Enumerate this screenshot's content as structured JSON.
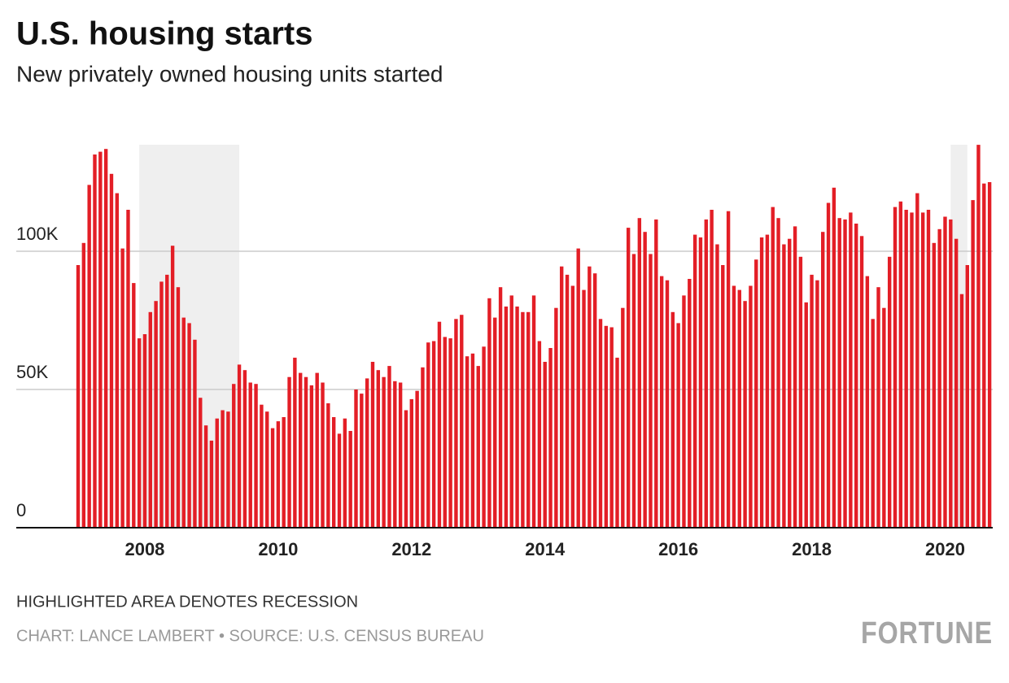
{
  "chart_data": {
    "type": "bar",
    "title": "U.S. housing starts",
    "subtitle": "New privately owned housing units started",
    "note": "HIGHLIGHTED AREA DENOTES RECESSION",
    "source": "CHART: LANCE LAMBERT • SOURCE: U.S. CENSUS BUREAU",
    "brand": "FORTUNE",
    "color": "#e31e26",
    "grid": true,
    "categories": [
      null,
      null,
      null,
      null,
      null,
      null,
      null,
      null,
      null,
      null,
      null,
      null,
      "2008",
      null,
      null,
      null,
      null,
      null,
      null,
      null,
      null,
      null,
      null,
      null,
      null,
      null,
      null,
      null,
      null,
      null,
      null,
      null,
      null,
      null,
      null,
      null,
      "2010",
      null,
      null,
      null,
      null,
      null,
      null,
      null,
      null,
      null,
      null,
      null,
      null,
      null,
      null,
      null,
      null,
      null,
      null,
      null,
      null,
      null,
      null,
      null,
      "2012",
      null,
      null,
      null,
      null,
      null,
      null,
      null,
      null,
      null,
      null,
      null,
      null,
      null,
      null,
      null,
      null,
      null,
      null,
      null,
      null,
      null,
      null,
      null,
      "2014",
      null,
      null,
      null,
      null,
      null,
      null,
      null,
      null,
      null,
      null,
      null,
      null,
      null,
      null,
      null,
      null,
      null,
      null,
      null,
      null,
      null,
      null,
      null,
      "2016",
      null,
      null,
      null,
      null,
      null,
      null,
      null,
      null,
      null,
      null,
      null,
      null,
      null,
      null,
      null,
      null,
      null,
      null,
      null,
      null,
      null,
      null,
      null,
      "2018",
      null,
      null,
      null,
      null,
      null,
      null,
      null,
      null,
      null,
      null,
      null,
      null,
      null,
      null,
      null,
      null,
      null,
      null,
      null,
      null,
      null,
      null,
      null,
      "2020",
      null,
      null,
      null,
      null,
      null,
      null,
      null,
      null
    ],
    "values": [
      95000,
      103000,
      124000,
      135000,
      136000,
      137000,
      128000,
      121000,
      101000,
      115000,
      88500,
      68500,
      70000,
      78000,
      82000,
      89000,
      91500,
      102000,
      87000,
      76000,
      74000,
      68000,
      47000,
      37000,
      31500,
      39500,
      42500,
      42000,
      52000,
      59000,
      57000,
      52500,
      52000,
      44500,
      42000,
      36000,
      38500,
      40000,
      54500,
      61500,
      56000,
      54500,
      51500,
      56000,
      52500,
      45000,
      40000,
      34000,
      39500,
      35000,
      50000,
      48500,
      54000,
      60000,
      57000,
      54500,
      58500,
      53000,
      52500,
      42500,
      46500,
      49500,
      58000,
      67000,
      67500,
      74500,
      69000,
      68500,
      75500,
      77000,
      62000,
      63000,
      58500,
      65500,
      83000,
      76000,
      87000,
      80000,
      84000,
      80000,
      78000,
      78000,
      84000,
      67500,
      60000,
      65000,
      79500,
      94500,
      91500,
      87500,
      101000,
      86000,
      94500,
      92000,
      75500,
      73000,
      72500,
      61500,
      79500,
      108500,
      99000,
      112000,
      107000,
      99000,
      111500,
      91000,
      89500,
      78000,
      74000,
      84000,
      90000,
      106000,
      105000,
      111500,
      115000,
      102500,
      95000,
      114500,
      87500,
      86000,
      82000,
      87500,
      97000,
      105000,
      106000,
      116000,
      112000,
      102500,
      104500,
      109000,
      98000,
      81500,
      91500,
      89500,
      107000,
      117500,
      123000,
      112000,
      111500,
      114000,
      110000,
      105500,
      91000,
      75500,
      87000,
      79500,
      98000,
      116000,
      118000,
      115000,
      114000,
      121000,
      114000,
      115000,
      103000,
      108000,
      112500,
      111500,
      104500,
      84500,
      95000,
      118500,
      138500,
      124500,
      125000
    ],
    "recessions": [
      {
        "start": 11,
        "end": 29
      },
      {
        "start": 157,
        "end": 160
      }
    ],
    "ylim": [
      0,
      140000
    ],
    "yticks": [
      0,
      {
        "value": 50000,
        "label": "50K"
      },
      {
        "value": 100000,
        "label": "100K"
      }
    ]
  }
}
